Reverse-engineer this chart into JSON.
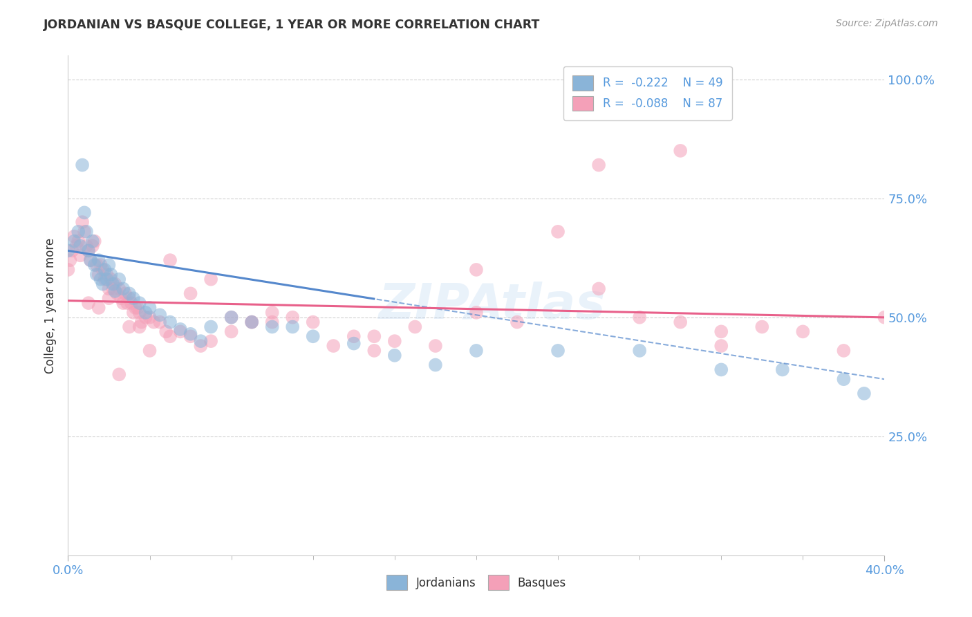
{
  "title": "JORDANIAN VS BASQUE COLLEGE, 1 YEAR OR MORE CORRELATION CHART",
  "source_text": "Source: ZipAtlas.com",
  "ylabel": "College, 1 year or more",
  "xlim": [
    0.0,
    0.4
  ],
  "ylim": [
    0.0,
    1.05
  ],
  "ytick_labels": [
    "25.0%",
    "50.0%",
    "75.0%",
    "100.0%"
  ],
  "ytick_values": [
    0.25,
    0.5,
    0.75,
    1.0
  ],
  "jordanian_color": "#8ab4d8",
  "basque_color": "#f4a0b8",
  "jordanian_trend_color": "#5588cc",
  "basque_trend_color": "#e8608a",
  "watermark": "ZIPAtlas",
  "r_jordan": -0.222,
  "n_jordan": 49,
  "r_basque": -0.088,
  "n_basque": 87,
  "jordanian_points_x": [
    0.0,
    0.003,
    0.005,
    0.006,
    0.007,
    0.008,
    0.009,
    0.01,
    0.011,
    0.012,
    0.013,
    0.014,
    0.015,
    0.016,
    0.017,
    0.018,
    0.019,
    0.02,
    0.021,
    0.022,
    0.023,
    0.025,
    0.027,
    0.03,
    0.032,
    0.035,
    0.038,
    0.04,
    0.045,
    0.05,
    0.055,
    0.06,
    0.065,
    0.07,
    0.08,
    0.09,
    0.1,
    0.11,
    0.12,
    0.14,
    0.16,
    0.18,
    0.2,
    0.24,
    0.28,
    0.32,
    0.35,
    0.38,
    0.39
  ],
  "jordanian_points_y": [
    0.64,
    0.66,
    0.68,
    0.65,
    0.82,
    0.72,
    0.68,
    0.64,
    0.62,
    0.66,
    0.61,
    0.59,
    0.62,
    0.58,
    0.57,
    0.6,
    0.58,
    0.61,
    0.59,
    0.57,
    0.555,
    0.58,
    0.56,
    0.55,
    0.54,
    0.53,
    0.51,
    0.52,
    0.505,
    0.49,
    0.475,
    0.465,
    0.45,
    0.48,
    0.5,
    0.49,
    0.48,
    0.48,
    0.46,
    0.445,
    0.42,
    0.4,
    0.43,
    0.43,
    0.43,
    0.39,
    0.39,
    0.37,
    0.34
  ],
  "basque_points_x": [
    0.0,
    0.001,
    0.002,
    0.003,
    0.004,
    0.005,
    0.006,
    0.007,
    0.008,
    0.009,
    0.01,
    0.011,
    0.012,
    0.013,
    0.014,
    0.015,
    0.016,
    0.017,
    0.018,
    0.019,
    0.02,
    0.021,
    0.022,
    0.023,
    0.024,
    0.025,
    0.026,
    0.027,
    0.028,
    0.029,
    0.03,
    0.031,
    0.032,
    0.033,
    0.034,
    0.035,
    0.036,
    0.038,
    0.04,
    0.042,
    0.045,
    0.048,
    0.05,
    0.055,
    0.06,
    0.065,
    0.07,
    0.08,
    0.09,
    0.1,
    0.11,
    0.12,
    0.13,
    0.14,
    0.15,
    0.16,
    0.17,
    0.18,
    0.2,
    0.22,
    0.24,
    0.26,
    0.28,
    0.3,
    0.32,
    0.34,
    0.36,
    0.38,
    0.4,
    0.01,
    0.015,
    0.02,
    0.025,
    0.03,
    0.035,
    0.04,
    0.05,
    0.06,
    0.07,
    0.08,
    0.09,
    0.1,
    0.15,
    0.2,
    0.26,
    0.3,
    0.32
  ],
  "basque_points_y": [
    0.6,
    0.62,
    0.64,
    0.67,
    0.65,
    0.66,
    0.63,
    0.7,
    0.68,
    0.65,
    0.64,
    0.62,
    0.65,
    0.66,
    0.61,
    0.59,
    0.61,
    0.6,
    0.58,
    0.59,
    0.56,
    0.58,
    0.56,
    0.57,
    0.55,
    0.56,
    0.54,
    0.53,
    0.55,
    0.53,
    0.54,
    0.53,
    0.51,
    0.52,
    0.52,
    0.51,
    0.49,
    0.5,
    0.5,
    0.49,
    0.49,
    0.47,
    0.46,
    0.47,
    0.46,
    0.44,
    0.45,
    0.47,
    0.49,
    0.49,
    0.5,
    0.49,
    0.44,
    0.46,
    0.43,
    0.45,
    0.48,
    0.44,
    0.51,
    0.49,
    0.68,
    0.56,
    0.5,
    0.49,
    0.47,
    0.48,
    0.47,
    0.43,
    0.5,
    0.53,
    0.52,
    0.54,
    0.38,
    0.48,
    0.48,
    0.43,
    0.62,
    0.55,
    0.58,
    0.5,
    0.49,
    0.51,
    0.46,
    0.6,
    0.82,
    0.85,
    0.44
  ]
}
